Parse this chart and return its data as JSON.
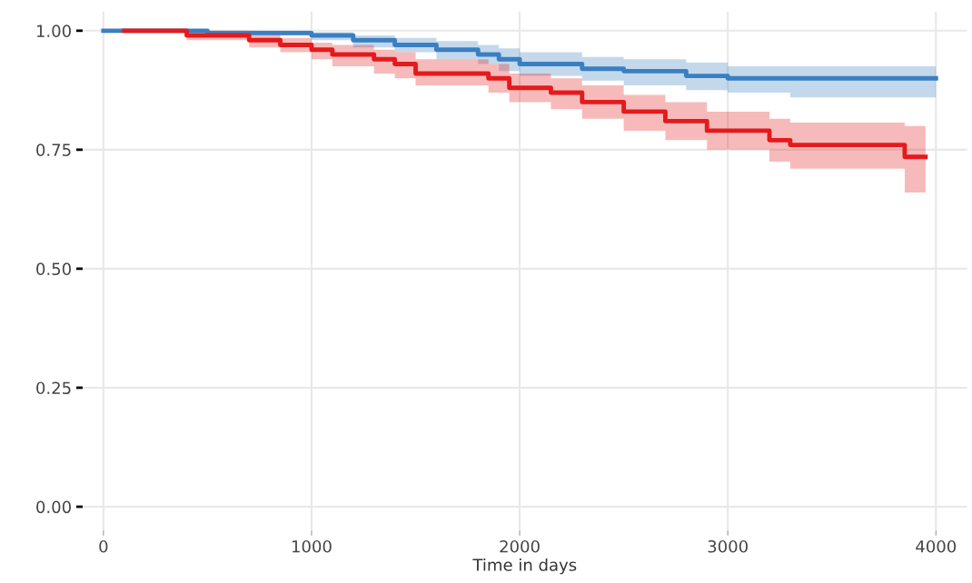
{
  "chart_data": {
    "type": "step",
    "xlabel": "Time in days",
    "xlim": [
      -100,
      4150
    ],
    "ylim": [
      -0.05,
      1.04
    ],
    "xticks": [
      0,
      1000,
      2000,
      3000,
      4000
    ],
    "yticks": [
      {
        "value": 0,
        "label": "0.00"
      },
      {
        "value": 0.25,
        "label": "0.25"
      },
      {
        "value": 0.5,
        "label": "0.50"
      },
      {
        "value": 0.75,
        "label": "0.75"
      },
      {
        "value": 1,
        "label": "1.00"
      }
    ],
    "grid": true,
    "line_style": "solid",
    "marker": "none",
    "series": [
      {
        "color": "#3a7fc1",
        "x": [
          0,
          500,
          1000,
          1200,
          1400,
          1600,
          1800,
          1900,
          2000,
          2300,
          2500,
          2800,
          3000,
          3300,
          4000
        ],
        "values": [
          1.0,
          0.995,
          0.99,
          0.98,
          0.97,
          0.96,
          0.95,
          0.94,
          0.93,
          0.92,
          0.915,
          0.905,
          0.9,
          0.9,
          0.9
        ],
        "lower": [
          1.0,
          0.99,
          0.98,
          0.965,
          0.955,
          0.94,
          0.93,
          0.915,
          0.905,
          0.895,
          0.885,
          0.875,
          0.87,
          0.86,
          0.86
        ],
        "upper": [
          1.0,
          1.0,
          0.997,
          0.99,
          0.985,
          0.978,
          0.97,
          0.963,
          0.955,
          0.945,
          0.94,
          0.933,
          0.925,
          0.925,
          0.925
        ]
      },
      {
        "color": "#e41a1c",
        "x": [
          100,
          400,
          700,
          850,
          1000,
          1100,
          1300,
          1400,
          1500,
          1850,
          1950,
          2150,
          2300,
          2500,
          2700,
          2900,
          3200,
          3300,
          3850,
          3950
        ],
        "values": [
          1.0,
          0.99,
          0.98,
          0.97,
          0.96,
          0.95,
          0.94,
          0.93,
          0.91,
          0.9,
          0.88,
          0.87,
          0.85,
          0.83,
          0.81,
          0.79,
          0.77,
          0.76,
          0.735,
          0.735
        ],
        "lower": [
          1.0,
          0.98,
          0.965,
          0.955,
          0.94,
          0.925,
          0.91,
          0.9,
          0.885,
          0.87,
          0.85,
          0.835,
          0.815,
          0.79,
          0.77,
          0.75,
          0.725,
          0.71,
          0.66,
          0.66
        ],
        "upper": [
          1.0,
          1.0,
          0.99,
          0.985,
          0.975,
          0.97,
          0.96,
          0.955,
          0.94,
          0.93,
          0.91,
          0.9,
          0.885,
          0.865,
          0.85,
          0.83,
          0.815,
          0.807,
          0.8,
          0.8
        ]
      }
    ]
  }
}
